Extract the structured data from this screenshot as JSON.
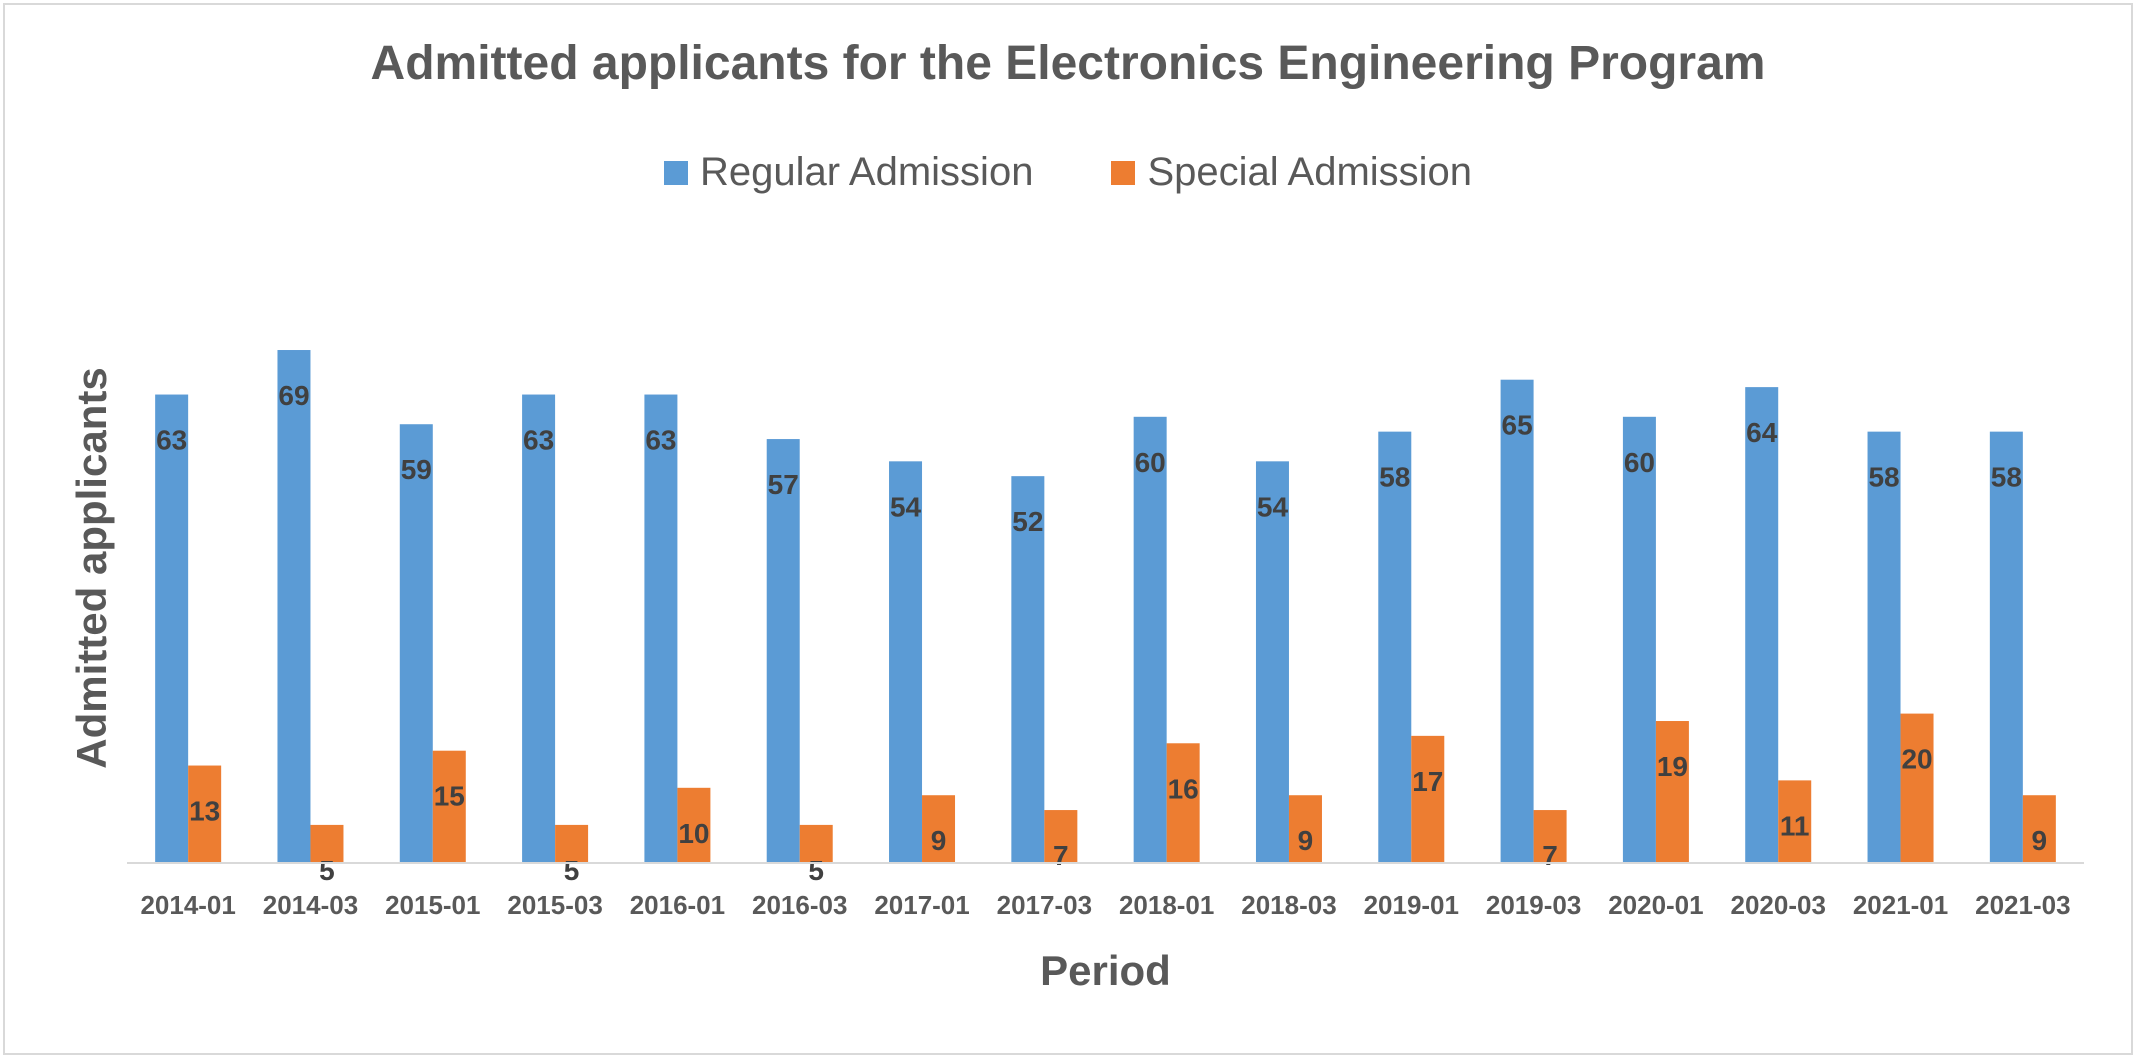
{
  "chart_data": {
    "type": "bar",
    "title": "Admitted applicants for the Electronics Engineering Program",
    "xlabel": "Period",
    "ylabel": "Admitted applicants",
    "categories": [
      "2014-01",
      "2014-03",
      "2015-01",
      "2015-03",
      "2016-01",
      "2016-03",
      "2017-01",
      "2017-03",
      "2018-01",
      "2018-03",
      "2019-01",
      "2019-03",
      "2020-01",
      "2020-03",
      "2021-01",
      "2021-03"
    ],
    "series": [
      {
        "name": "Regular Admission",
        "color": "#5b9bd5",
        "values": [
          63,
          69,
          59,
          63,
          63,
          57,
          54,
          52,
          60,
          54,
          58,
          65,
          60,
          64,
          58,
          58
        ]
      },
      {
        "name": "Special Admission",
        "color": "#ed7d31",
        "values": [
          13,
          5,
          15,
          5,
          10,
          5,
          9,
          7,
          16,
          9,
          17,
          7,
          19,
          11,
          20,
          9
        ]
      }
    ],
    "ylim": [
      0,
      69
    ],
    "grid": false,
    "legend_position": "top",
    "data_labels": true
  }
}
